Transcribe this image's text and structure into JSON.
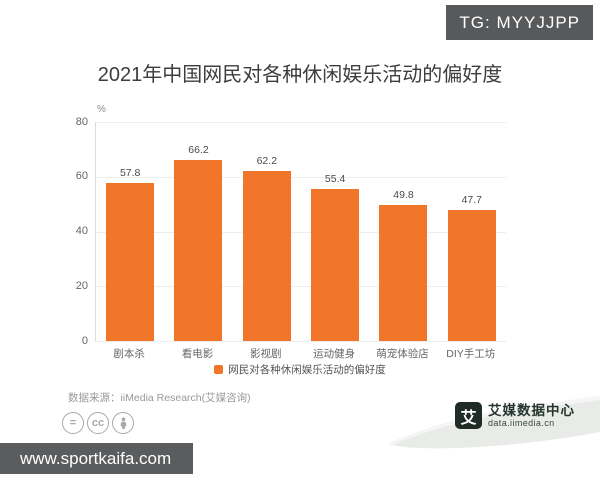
{
  "overlay": {
    "tg_badge": "TG: MYYJJPP",
    "watermark_url": "www.sportkaifa.com"
  },
  "title": "2021年中国网民对各种休闲娱乐活动的偏好度",
  "chart_data": {
    "type": "bar",
    "title": "2021年中国网民对各种休闲娱乐活动的偏好度",
    "categories": [
      "剧本杀",
      "看电影",
      "影视剧",
      "运动健身",
      "萌宠体验店",
      "DIY手工坊"
    ],
    "values": [
      57.8,
      66.2,
      62.2,
      55.4,
      49.8,
      47.7
    ],
    "xlabel": "",
    "ylabel": "%",
    "ylim": [
      0,
      80
    ],
    "yticks": [
      0,
      20,
      40,
      60,
      80
    ],
    "grid": true,
    "legend": [
      "网民对各种休闲娱乐活动的偏好度"
    ],
    "legend_position": "bottom",
    "bar_color": "#F17629"
  },
  "legend_label": "网民对各种休闲娱乐活动的偏好度",
  "source": "数据来源：iiMedia Research(艾媒咨询)",
  "license_icons": {
    "equals_glyph": "=",
    "cc_glyph": "cc",
    "person_icon": "person-icon"
  },
  "branding": {
    "logo_char": "艾",
    "logo_name": "艾媒数据中心",
    "logo_url": "data.iimedia.cn"
  },
  "colors": {
    "bar": "#F17629",
    "badge_bg": "#58595B",
    "watermark_bg": "#5B5C5E",
    "title_text": "#3D3D3D",
    "axis_text": "#666666",
    "grid_line": "#EEEEEE",
    "source_text": "#999999",
    "icon_gray": "#A8A8A8",
    "logo_dark": "#202B25",
    "ribbon_gray": "#E9EBE8"
  }
}
